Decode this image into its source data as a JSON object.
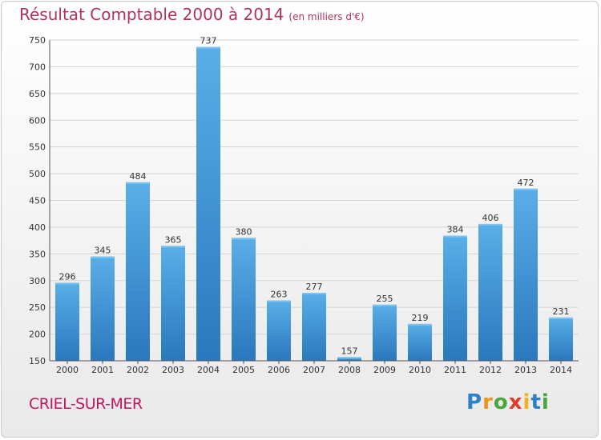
{
  "header": {
    "title": "Résultat Comptable 2000 à 2014",
    "subtitle": "(en milliers d'€)"
  },
  "footer": {
    "place": "CRIEL-SUR-MER",
    "brand": "Proxiti"
  },
  "colors": {
    "bar_top": "#5aaee8",
    "bar_bottom": "#2a78bd",
    "title": "#b0335a"
  },
  "chart_data": {
    "type": "bar",
    "title": "Résultat Comptable 2000 à 2014",
    "subtitle": "(en milliers d'€)",
    "categories": [
      "2000",
      "2001",
      "2002",
      "2003",
      "2004",
      "2005",
      "2006",
      "2007",
      "2008",
      "2009",
      "2010",
      "2011",
      "2012",
      "2013",
      "2014"
    ],
    "values": [
      296,
      345,
      484,
      365,
      737,
      380,
      263,
      277,
      157,
      255,
      219,
      384,
      406,
      472,
      231
    ],
    "yticks": [
      150,
      200,
      250,
      300,
      350,
      400,
      450,
      500,
      550,
      600,
      650,
      700,
      750
    ],
    "ylim": [
      150,
      750
    ],
    "grid": true,
    "legend": "none"
  }
}
